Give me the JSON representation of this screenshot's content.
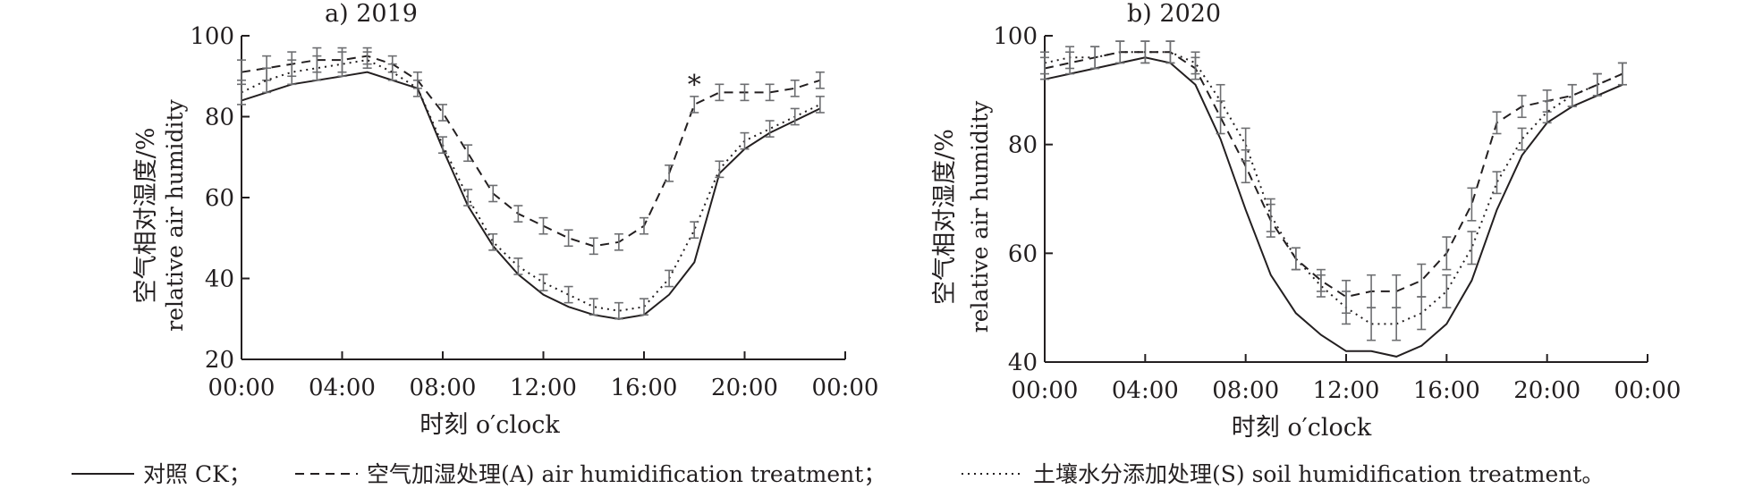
{
  "legend": {
    "ck_label": "对照 CK；",
    "a_label": "空气加湿处理(A) air humidification treatment；",
    "s_label": "土壤水分添加处理(S) soil humidification treatment。"
  },
  "chart_data": [
    {
      "type": "line",
      "title": "a) 2019",
      "xlabel": "时刻 o′clock",
      "ylabel_cn": "空气相对湿度/%",
      "ylabel_en": "relative air humidity",
      "xlim": [
        0,
        24
      ],
      "ylim": [
        20,
        100
      ],
      "x_ticks": [
        0,
        4,
        8,
        12,
        16,
        20,
        24
      ],
      "x_tick_labels": [
        "00:00",
        "04:00",
        "08:00",
        "12:00",
        "16:00",
        "20:00",
        "00:00"
      ],
      "y_ticks": [
        20,
        40,
        60,
        80,
        100
      ],
      "y_tick_labels": [
        "20",
        "40",
        "60",
        "80",
        "100"
      ],
      "annotation": {
        "text": "*",
        "x": 18,
        "y": 87
      },
      "grid": false,
      "x": [
        0,
        1,
        2,
        3,
        4,
        5,
        6,
        7,
        8,
        9,
        10,
        11,
        12,
        13,
        14,
        15,
        16,
        17,
        18,
        19,
        20,
        21,
        22,
        23
      ],
      "series": [
        {
          "key": "ck",
          "style": "solid",
          "values": [
            84,
            86,
            88,
            89,
            90,
            91,
            89,
            87,
            72,
            58,
            48,
            41,
            36,
            33,
            31,
            30,
            31,
            36,
            44,
            66,
            72,
            76,
            79,
            82
          ],
          "errors": [
            0,
            0,
            0,
            0,
            0,
            0,
            0,
            0,
            0,
            0,
            0,
            0,
            0,
            0,
            0,
            0,
            0,
            0,
            0,
            0,
            0,
            0,
            0,
            0
          ]
        },
        {
          "key": "a",
          "style": "dashed",
          "values": [
            91,
            92,
            93,
            94,
            94,
            95,
            93,
            89,
            81,
            71,
            61,
            56,
            53,
            50,
            48,
            49,
            53,
            66,
            83,
            86,
            86,
            86,
            87,
            89
          ],
          "errors": [
            3,
            3,
            3,
            3,
            3,
            2,
            2,
            2,
            2,
            2,
            2,
            2,
            2,
            2,
            2,
            2,
            2,
            2,
            2,
            2,
            2,
            2,
            2,
            2
          ]
        },
        {
          "key": "s",
          "style": "dotted",
          "values": [
            86,
            89,
            91,
            92,
            93,
            94,
            91,
            87,
            73,
            60,
            49,
            43,
            39,
            36,
            33,
            32,
            33,
            40,
            52,
            67,
            74,
            77,
            80,
            83
          ],
          "errors": [
            3,
            3,
            3,
            3,
            3,
            2,
            2,
            2,
            2,
            2,
            2,
            2,
            2,
            2,
            2,
            2,
            2,
            2,
            2,
            2,
            2,
            2,
            2,
            2
          ]
        }
      ]
    },
    {
      "type": "line",
      "title": "b) 2020",
      "xlabel": "时刻 o′clock",
      "ylabel_cn": "空气相对湿度/%",
      "ylabel_en": "relative air humidity",
      "xlim": [
        0,
        24
      ],
      "ylim": [
        40,
        100
      ],
      "x_ticks": [
        0,
        4,
        8,
        12,
        16,
        20,
        24
      ],
      "x_tick_labels": [
        "00:00",
        "04:00",
        "08:00",
        "12:00",
        "16:00",
        "20:00",
        "00:00"
      ],
      "y_ticks": [
        40,
        60,
        80,
        100
      ],
      "y_tick_labels": [
        "40",
        "60",
        "80",
        "100"
      ],
      "grid": false,
      "x": [
        0,
        1,
        2,
        3,
        4,
        5,
        6,
        7,
        8,
        9,
        10,
        11,
        12,
        13,
        14,
        15,
        16,
        17,
        18,
        19,
        20,
        21,
        22,
        23
      ],
      "series": [
        {
          "key": "ck",
          "style": "solid",
          "values": [
            92,
            93,
            94,
            95,
            96,
            95,
            91,
            81,
            68,
            56,
            49,
            45,
            42,
            42,
            41,
            43,
            47,
            55,
            68,
            78,
            84,
            87,
            89,
            91
          ],
          "errors": [
            0,
            0,
            0,
            0,
            0,
            0,
            0,
            0,
            0,
            0,
            0,
            0,
            0,
            0,
            0,
            0,
            0,
            0,
            0,
            0,
            0,
            0,
            0,
            0
          ]
        },
        {
          "key": "a",
          "style": "dashed",
          "values": [
            94,
            95,
            96,
            97,
            97,
            97,
            94,
            85,
            76,
            66,
            59,
            55,
            52,
            53,
            53,
            55,
            60,
            69,
            84,
            87,
            88,
            89,
            91,
            93
          ],
          "errors": [
            2,
            2,
            2,
            2,
            2,
            2,
            2,
            3,
            3,
            3,
            2,
            2,
            3,
            3,
            3,
            3,
            3,
            3,
            2,
            2,
            2,
            2,
            2,
            2
          ]
        },
        {
          "key": "s",
          "style": "dotted",
          "values": [
            95,
            96,
            96,
            97,
            97,
            97,
            95,
            88,
            80,
            67,
            59,
            54,
            50,
            47,
            47,
            49,
            53,
            61,
            73,
            81,
            86,
            89,
            91,
            93
          ],
          "errors": [
            2,
            2,
            2,
            2,
            2,
            2,
            2,
            3,
            3,
            3,
            2,
            2,
            3,
            3,
            3,
            3,
            3,
            3,
            2,
            2,
            2,
            2,
            2,
            2
          ]
        }
      ]
    }
  ]
}
